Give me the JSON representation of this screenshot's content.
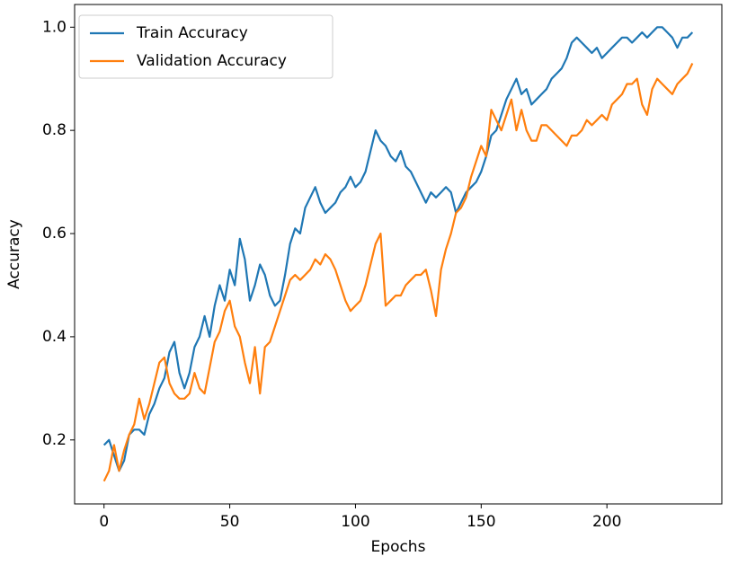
{
  "chart_data": {
    "type": "line",
    "x_label": "Epochs",
    "y_label": "Accuracy",
    "x": [
      0,
      2,
      4,
      6,
      8,
      10,
      12,
      14,
      16,
      18,
      20,
      22,
      24,
      26,
      28,
      30,
      32,
      34,
      36,
      38,
      40,
      42,
      44,
      46,
      48,
      50,
      52,
      54,
      56,
      58,
      60,
      62,
      64,
      66,
      68,
      70,
      72,
      74,
      76,
      78,
      80,
      82,
      84,
      86,
      88,
      90,
      92,
      94,
      96,
      98,
      100,
      102,
      104,
      106,
      108,
      110,
      112,
      114,
      116,
      118,
      120,
      122,
      124,
      126,
      128,
      130,
      132,
      134,
      136,
      138,
      140,
      142,
      144,
      146,
      148,
      150,
      152,
      154,
      156,
      158,
      160,
      162,
      164,
      166,
      168,
      170,
      172,
      174,
      176,
      178,
      180,
      182,
      184,
      186,
      188,
      190,
      192,
      194,
      196,
      198,
      200,
      202,
      204,
      206,
      208,
      210,
      212,
      214,
      216,
      218,
      220,
      222,
      224,
      226,
      228,
      230,
      232,
      234
    ],
    "series": [
      {
        "name": "Train Accuracy",
        "color": "#1f77b4",
        "values": [
          0.19,
          0.2,
          0.17,
          0.14,
          0.16,
          0.21,
          0.22,
          0.22,
          0.21,
          0.25,
          0.27,
          0.3,
          0.32,
          0.37,
          0.39,
          0.33,
          0.3,
          0.33,
          0.38,
          0.4,
          0.44,
          0.4,
          0.46,
          0.5,
          0.47,
          0.53,
          0.5,
          0.59,
          0.55,
          0.47,
          0.5,
          0.54,
          0.52,
          0.48,
          0.46,
          0.47,
          0.52,
          0.58,
          0.61,
          0.6,
          0.65,
          0.67,
          0.69,
          0.66,
          0.64,
          0.65,
          0.66,
          0.68,
          0.69,
          0.71,
          0.69,
          0.7,
          0.72,
          0.76,
          0.8,
          0.78,
          0.77,
          0.75,
          0.74,
          0.76,
          0.73,
          0.72,
          0.7,
          0.68,
          0.66,
          0.68,
          0.67,
          0.68,
          0.69,
          0.68,
          0.64,
          0.66,
          0.68,
          0.69,
          0.7,
          0.72,
          0.75,
          0.79,
          0.8,
          0.83,
          0.86,
          0.88,
          0.9,
          0.87,
          0.88,
          0.85,
          0.86,
          0.87,
          0.88,
          0.9,
          0.91,
          0.92,
          0.94,
          0.97,
          0.98,
          0.97,
          0.96,
          0.95,
          0.96,
          0.94,
          0.95,
          0.96,
          0.97,
          0.98,
          0.98,
          0.97,
          0.98,
          0.99,
          0.98,
          0.99,
          1.0,
          1.0,
          0.99,
          0.98,
          0.96,
          0.98,
          0.98,
          0.99
        ]
      },
      {
        "name": "Validation Accuracy",
        "color": "#ff7f0e",
        "values": [
          0.12,
          0.14,
          0.19,
          0.14,
          0.18,
          0.21,
          0.23,
          0.28,
          0.24,
          0.27,
          0.31,
          0.35,
          0.36,
          0.31,
          0.29,
          0.28,
          0.28,
          0.29,
          0.33,
          0.3,
          0.29,
          0.34,
          0.39,
          0.41,
          0.45,
          0.47,
          0.42,
          0.4,
          0.35,
          0.31,
          0.38,
          0.29,
          0.38,
          0.39,
          0.42,
          0.45,
          0.48,
          0.51,
          0.52,
          0.51,
          0.52,
          0.53,
          0.55,
          0.54,
          0.56,
          0.55,
          0.53,
          0.5,
          0.47,
          0.45,
          0.46,
          0.47,
          0.5,
          0.54,
          0.58,
          0.6,
          0.46,
          0.47,
          0.48,
          0.48,
          0.5,
          0.51,
          0.52,
          0.52,
          0.53,
          0.49,
          0.44,
          0.53,
          0.57,
          0.6,
          0.64,
          0.65,
          0.67,
          0.71,
          0.74,
          0.77,
          0.75,
          0.84,
          0.82,
          0.8,
          0.83,
          0.86,
          0.8,
          0.84,
          0.8,
          0.78,
          0.78,
          0.81,
          0.81,
          0.8,
          0.79,
          0.78,
          0.77,
          0.79,
          0.79,
          0.8,
          0.82,
          0.81,
          0.82,
          0.83,
          0.82,
          0.85,
          0.86,
          0.87,
          0.89,
          0.89,
          0.9,
          0.85,
          0.83,
          0.88,
          0.9,
          0.89,
          0.88,
          0.87,
          0.89,
          0.9,
          0.91,
          0.93
        ]
      }
    ],
    "xlim": [
      -11.7,
      245.7
    ],
    "xticks": [
      0,
      50,
      100,
      150,
      200
    ],
    "ylim": [
      0.076,
      1.044
    ],
    "yticks": [
      0.2,
      0.4,
      0.6,
      0.8,
      {
        "value": 1.0,
        "label": "1.0"
      }
    ],
    "grid": false,
    "legend": "upper-left"
  }
}
